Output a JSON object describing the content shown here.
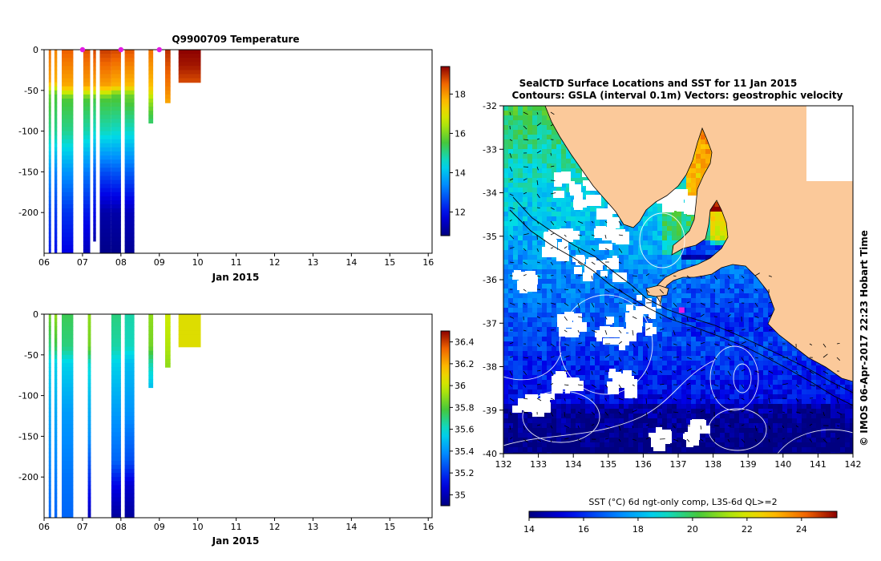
{
  "title": "Q9900709  Temperature",
  "chart_data": [
    {
      "type": "heatmap",
      "name": "temperature-section",
      "title": "Q9900709  Temperature",
      "xlabel": "Jan 2015",
      "ylabel": "",
      "x_ticks": [
        "06",
        "07",
        "08",
        "09",
        "10",
        "11",
        "12",
        "13",
        "14",
        "15",
        "16"
      ],
      "xlim": [
        6,
        16.1
      ],
      "y_ticks": [
        0,
        -50,
        -100,
        -150,
        -200
      ],
      "ylim": [
        -250,
        0
      ],
      "colorbar": {
        "ticks": [
          12,
          14,
          16,
          18
        ],
        "range": [
          10.8,
          19.4
        ]
      },
      "station_markers": [
        7.0,
        8.0,
        9.0
      ],
      "profiles": [
        {
          "t": 6.12,
          "w": 0.06,
          "bottom": -250,
          "values": [
            [
              0,
              18.4
            ],
            [
              -40,
              17.9
            ],
            [
              -55,
              15.8
            ],
            [
              -100,
              15
            ],
            [
              -150,
              13.5
            ],
            [
              -200,
              12.6
            ],
            [
              -250,
              12.1
            ]
          ]
        },
        {
          "t": 6.27,
          "w": 0.07,
          "bottom": -250,
          "values": [
            [
              0,
              18.2
            ],
            [
              -40,
              17.7
            ],
            [
              -55,
              15.6
            ],
            [
              -100,
              15
            ],
            [
              -150,
              13.3
            ],
            [
              -200,
              12.5
            ],
            [
              -250,
              12
            ]
          ]
        },
        {
          "t": 6.46,
          "w": 0.3,
          "bottom": -250,
          "values": [
            [
              0,
              18.6
            ],
            [
              -45,
              17.8
            ],
            [
              -60,
              15.6
            ],
            [
              -100,
              15
            ],
            [
              -150,
              13.5
            ],
            [
              -200,
              12.4
            ],
            [
              -250,
              11.8
            ]
          ]
        },
        {
          "t": 7.02,
          "w": 0.18,
          "bottom": -250,
          "values": [
            [
              0,
              18.7
            ],
            [
              -45,
              17.9
            ],
            [
              -60,
              15.6
            ],
            [
              -100,
              14.8
            ],
            [
              -150,
              13.2
            ],
            [
              -200,
              12.1
            ],
            [
              -250,
              11.4
            ]
          ]
        },
        {
          "t": 7.28,
          "w": 0.07,
          "bottom": -235,
          "values": [
            [
              0,
              18.8
            ],
            [
              -45,
              17.8
            ],
            [
              -60,
              15.5
            ],
            [
              -100,
              14.6
            ],
            [
              -150,
              12.8
            ],
            [
              -200,
              11.9
            ],
            [
              -235,
              11.2
            ]
          ]
        },
        {
          "t": 7.45,
          "w": 0.3,
          "bottom": -250,
          "values": [
            [
              0,
              18.9
            ],
            [
              -45,
              17.9
            ],
            [
              -60,
              15.6
            ],
            [
              -100,
              14.7
            ],
            [
              -150,
              12.7
            ],
            [
              -200,
              11.2
            ],
            [
              -250,
              10.9
            ]
          ]
        },
        {
          "t": 7.75,
          "w": 0.25,
          "bottom": -250,
          "values": [
            [
              0,
              18.8
            ],
            [
              -45,
              17.7
            ],
            [
              -55,
              15.7
            ],
            [
              -100,
              14.6
            ],
            [
              -150,
              12.8
            ],
            [
              -200,
              11.2
            ],
            [
              -250,
              10.9
            ]
          ]
        },
        {
          "t": 8.1,
          "w": 0.25,
          "bottom": -250,
          "values": [
            [
              0,
              18.7
            ],
            [
              -45,
              17.6
            ],
            [
              -55,
              15.9
            ],
            [
              -100,
              14.6
            ],
            [
              -150,
              12.9
            ],
            [
              -200,
              11.4
            ],
            [
              -250,
              11
            ]
          ]
        },
        {
          "t": 8.72,
          "w": 0.12,
          "bottom": -90,
          "values": [
            [
              0,
              18.4
            ],
            [
              -45,
              17.6
            ],
            [
              -60,
              16.4
            ],
            [
              -80,
              15.5
            ],
            [
              -90,
              15.2
            ]
          ]
        },
        {
          "t": 9.15,
          "w": 0.14,
          "bottom": -62,
          "values": [
            [
              0,
              19
            ],
            [
              -45,
              18.3
            ],
            [
              -62,
              17.9
            ]
          ]
        },
        {
          "t": 9.5,
          "w": 0.58,
          "bottom": -37,
          "values": [
            [
              0,
              19.4
            ],
            [
              -20,
              19.2
            ],
            [
              -37,
              18.8
            ]
          ]
        }
      ]
    },
    {
      "type": "heatmap",
      "name": "salinity-section",
      "title": "",
      "xlabel": "Jan 2015",
      "ylabel": "",
      "x_ticks": [
        "06",
        "07",
        "08",
        "09",
        "10",
        "11",
        "12",
        "13",
        "14",
        "15",
        "16"
      ],
      "xlim": [
        6,
        16.1
      ],
      "y_ticks": [
        0,
        -50,
        -100,
        -150,
        -200
      ],
      "ylim": [
        -250,
        0
      ],
      "colorbar": {
        "ticks": [
          35,
          35.2,
          35.4,
          35.6,
          35.8,
          36,
          36.2,
          36.4
        ],
        "range": [
          34.9,
          36.5
        ]
      },
      "profiles": [
        {
          "t": 6.12,
          "w": 0.06,
          "bottom": -250,
          "values": [
            [
              0,
              35.85
            ],
            [
              -40,
              35.7
            ],
            [
              -60,
              35.55
            ],
            [
              -120,
              35.45
            ],
            [
              -200,
              35.35
            ],
            [
              -250,
              35.3
            ]
          ]
        },
        {
          "t": 6.27,
          "w": 0.07,
          "bottom": -250,
          "values": [
            [
              0,
              35.9
            ],
            [
              -40,
              35.75
            ],
            [
              -60,
              35.55
            ],
            [
              -120,
              35.45
            ],
            [
              -200,
              35.35
            ],
            [
              -250,
              35.3
            ]
          ]
        },
        {
          "t": 6.46,
          "w": 0.3,
          "bottom": -250,
          "values": [
            [
              0,
              35.75
            ],
            [
              -40,
              35.7
            ],
            [
              -60,
              35.55
            ],
            [
              -120,
              35.42
            ],
            [
              -200,
              35.33
            ],
            [
              -250,
              35.3
            ]
          ]
        },
        {
          "t": 7.14,
          "w": 0.08,
          "bottom": -250,
          "values": [
            [
              0,
              35.9
            ],
            [
              -40,
              35.85
            ],
            [
              -60,
              35.6
            ],
            [
              -100,
              35.5
            ],
            [
              -150,
              35.4
            ],
            [
              -250,
              35.0
            ]
          ]
        },
        {
          "t": 7.75,
          "w": 0.25,
          "bottom": -250,
          "values": [
            [
              0,
              35.7
            ],
            [
              -40,
              35.65
            ],
            [
              -60,
              35.55
            ],
            [
              -120,
              35.42
            ],
            [
              -180,
              35.3
            ],
            [
              -210,
              35.1
            ],
            [
              -250,
              34.95
            ]
          ]
        },
        {
          "t": 8.1,
          "w": 0.25,
          "bottom": -250,
          "values": [
            [
              0,
              35.65
            ],
            [
              -40,
              35.62
            ],
            [
              -60,
              35.5
            ],
            [
              -120,
              35.4
            ],
            [
              -180,
              35.25
            ],
            [
              -210,
              35.05
            ],
            [
              -250,
              34.95
            ]
          ]
        },
        {
          "t": 8.72,
          "w": 0.12,
          "bottom": -90,
          "values": [
            [
              0,
              35.9
            ],
            [
              -40,
              35.85
            ],
            [
              -60,
              35.65
            ],
            [
              -90,
              35.5
            ]
          ]
        },
        {
          "t": 9.15,
          "w": 0.14,
          "bottom": -62,
          "values": [
            [
              0,
              36.0
            ],
            [
              -40,
              35.95
            ],
            [
              -62,
              35.9
            ]
          ]
        },
        {
          "t": 9.5,
          "w": 0.58,
          "bottom": -37,
          "values": [
            [
              0,
              36.05
            ],
            [
              -37,
              36.05
            ]
          ]
        }
      ]
    },
    {
      "type": "heatmap",
      "name": "sst-map",
      "title": "SealCTD Surface Locations and SST for 11 Jan 2015",
      "subtitle": "Contours: GSLA (interval 0.1m) Vectors: geostrophic velocity",
      "xlabel": "",
      "ylabel": "",
      "xlim": [
        132,
        142
      ],
      "ylim": [
        -40,
        -32
      ],
      "x_ticks": [
        132,
        133,
        134,
        135,
        136,
        137,
        138,
        139,
        140,
        141,
        142
      ],
      "y_ticks": [
        -32,
        -33,
        -34,
        -35,
        -36,
        -37,
        -38,
        -39,
        -40
      ],
      "colorbar": {
        "label": "SST (°C) 6d ngt-only comp, L3S-6d QL>=2",
        "ticks": [
          14,
          16,
          18,
          20,
          22,
          24
        ],
        "range": [
          14,
          25.3
        ]
      },
      "seal_location": {
        "lon": 137.1,
        "lat": -36.7
      },
      "credit": "© IMOS 06-Apr-2017 22:23 Hobart Time"
    }
  ]
}
